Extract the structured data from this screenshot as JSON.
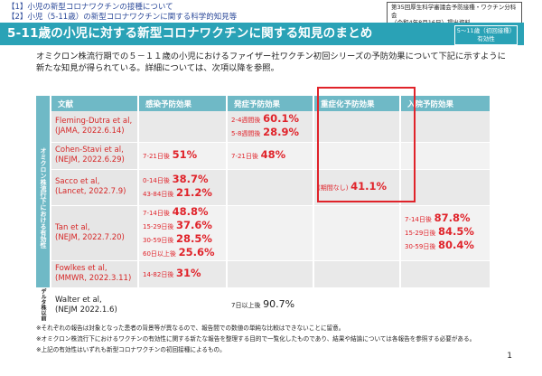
{
  "header": {
    "item1": "【1】小児の新型コロナワクチンの接種について",
    "item2": "【2】小児（5-11歳）の新型コロナワクチンに関する科学的知見等",
    "meeting_line1": "第35回厚生科学審議会予防接種・ワクチン分科会",
    "meeting_line2": "（令和4年8月16日）提出資料"
  },
  "title": "5-11歳の小児に対する新型コロナワクチンに関する知見のまとめ",
  "target_box": {
    "line1": "5～11歳（初回接種）",
    "line2": "有効性"
  },
  "intro": "オミクロン株流行期での５－１１歳の小児におけるファイザー社ワクチン初回シリーズの予防効果について下記に示すように新たな知見が得られている。詳細については、次項以降を参照。",
  "table": {
    "headers": [
      "文献",
      "感染予防効果",
      "発症予防効果",
      "重症化予防効果",
      "入院予防効果"
    ],
    "category_omicron": "オミクロン株流行下における有効性",
    "category_delta": "デルタ株以前",
    "rows": [
      {
        "name": "Fleming-Dutra et al,",
        "journal": "(JAMA, 2022.6.14)",
        "onset": [
          {
            "label": "2-4週間後",
            "value": "60.1%"
          },
          {
            "label": "5-8週間後",
            "value": "28.9%"
          }
        ]
      },
      {
        "name": "Cohen-Stavi et al,",
        "journal": "(NEJM, 2022.6.29)",
        "infection": [
          {
            "label": "7-21日後",
            "value": "51%"
          }
        ],
        "onset": [
          {
            "label": "7-21日後",
            "value": "48%"
          }
        ]
      },
      {
        "name": "Sacco et al,",
        "journal": "(Lancet, 2022.7.9)",
        "infection": [
          {
            "label": "0-14日後",
            "value": "38.7%"
          },
          {
            "label": "43-84日後",
            "value": "21.2%"
          }
        ],
        "severe": [
          {
            "label": "(期間なし)",
            "value": "41.1%"
          }
        ]
      },
      {
        "name": "Tan et al,",
        "journal": "(NEJM, 2022.7.20)",
        "infection": [
          {
            "label": "7-14日後",
            "value": "48.8%"
          },
          {
            "label": "15-29日後",
            "value": "37.6%"
          },
          {
            "label": "30-59日後",
            "value": "28.5%"
          },
          {
            "label": "60日以上後",
            "value": "25.6%"
          }
        ],
        "hospital": [
          {
            "label": "7-14日後",
            "value": "87.8%"
          },
          {
            "label": "15-29日後",
            "value": "84.5%"
          },
          {
            "label": "30-59日後",
            "value": "80.4%"
          }
        ]
      },
      {
        "name": "Fowlkes et al,",
        "journal": "(MMWR, 2022.3.11)",
        "infection": [
          {
            "label": "14-82日後",
            "value": "31%"
          }
        ]
      },
      {
        "name": "Walter et al,",
        "journal": "(NEJM 2022.1.6)",
        "onset": [
          {
            "label": "7日以上後",
            "value": "90.7%"
          }
        ]
      }
    ]
  },
  "notes": [
    "※それぞれの報告は対象となった患者の背景等が異なるので、報告間での数値の単純な比較はできないことに留意。",
    "※オミクロン株流行下におけるワクチンの有効性に関する新たな報告を整理する目的で一覧化したものであり、結果や結論については各報告を参照する必要がある。",
    "※上記の有効性はいずれも新型コロナワクチンの初回接種によるもの。"
  ],
  "page_number": "1"
}
